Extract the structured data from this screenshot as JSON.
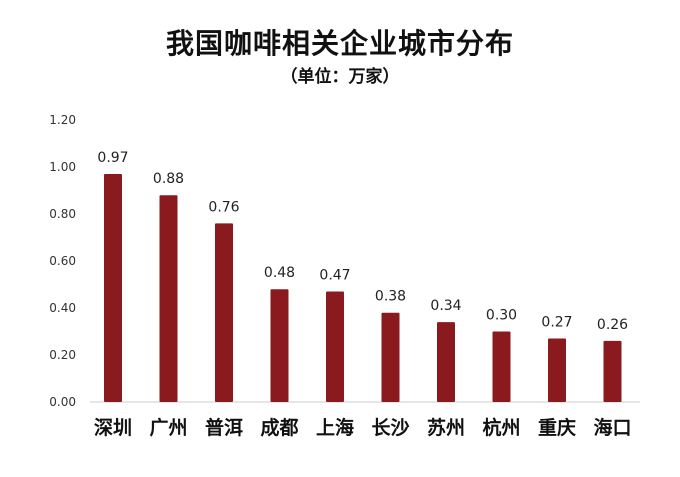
{
  "chart_data": {
    "type": "bar",
    "title": "我国咖啡相关企业城市分布",
    "subtitle": "（单位：万家）",
    "categories": [
      "深圳",
      "广州",
      "普洱",
      "成都",
      "上海",
      "长沙",
      "苏州",
      "杭州",
      "重庆",
      "海口"
    ],
    "values": [
      0.97,
      0.88,
      0.76,
      0.48,
      0.47,
      0.38,
      0.34,
      0.3,
      0.27,
      0.26
    ],
    "data_labels": [
      "0.97",
      "0.88",
      "0.76",
      "0.48",
      "0.47",
      "0.38",
      "0.34",
      "0.30",
      "0.27",
      "0.26"
    ],
    "yticks": [
      "0.00",
      "0.20",
      "0.40",
      "0.60",
      "0.80",
      "1.00",
      "1.20"
    ],
    "ylim": [
      0,
      1.2
    ],
    "xlabel": "",
    "ylabel": "",
    "grid": false,
    "bar_color": "#8B1A1F"
  }
}
